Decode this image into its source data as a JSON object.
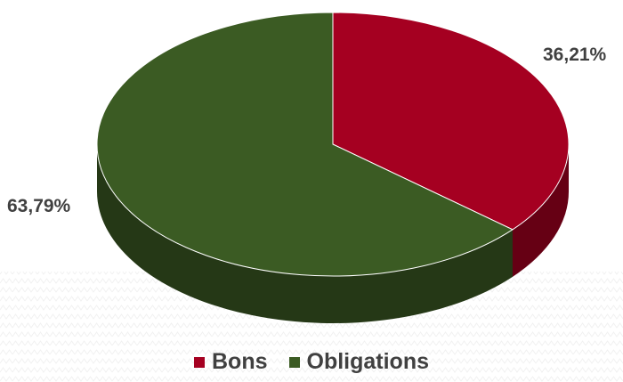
{
  "chart_data": {
    "type": "pie",
    "style": "3d",
    "categories": [
      "Bons",
      "Obligations"
    ],
    "values": [
      36.21,
      63.79
    ],
    "labels": [
      "36,21%",
      "63,79%"
    ],
    "colors": [
      "#a50021",
      "#3b5b23"
    ],
    "legend": {
      "position": "bottom",
      "entries": [
        "Bons",
        "Obligations"
      ]
    },
    "title": ""
  }
}
